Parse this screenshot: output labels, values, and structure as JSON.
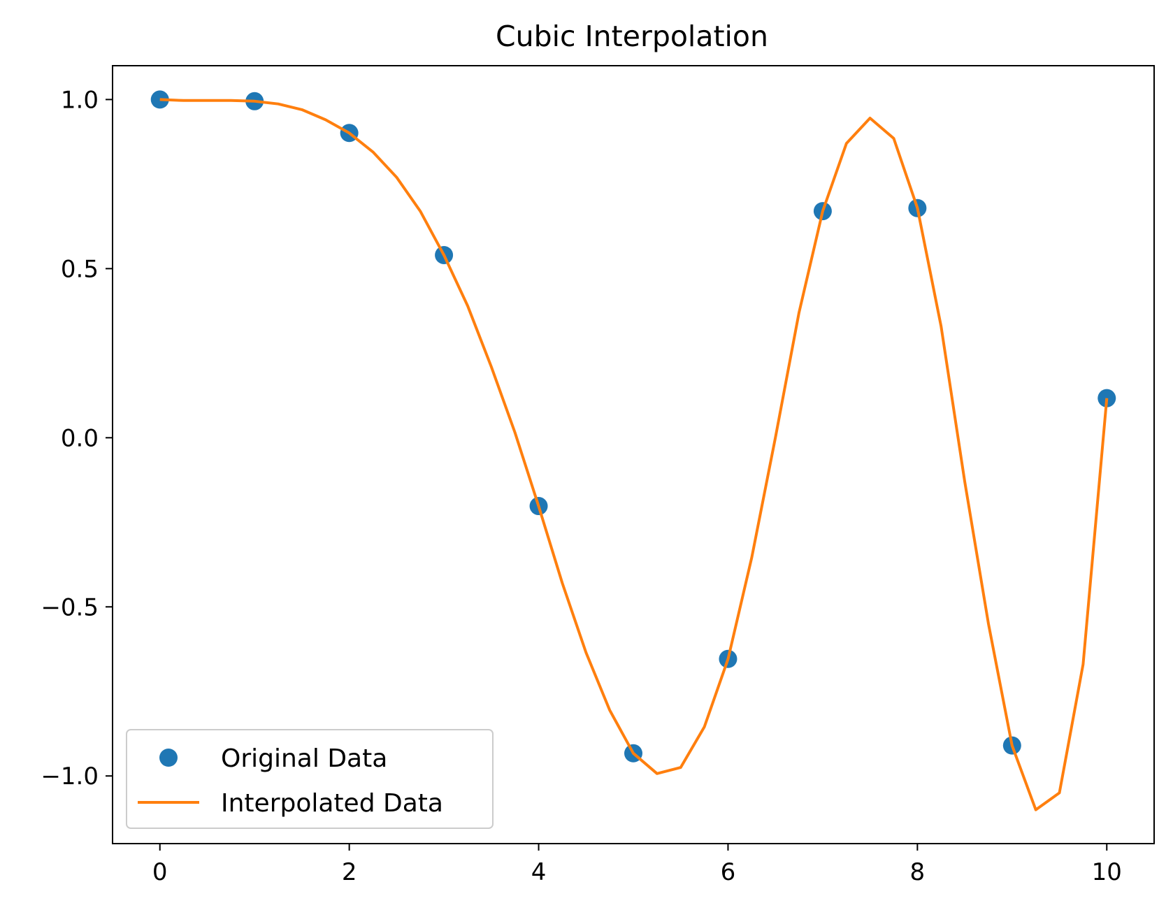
{
  "chart_data": {
    "type": "line",
    "title": "Cubic Interpolation",
    "xlabel": "",
    "ylabel": "",
    "xlim": [
      -0.5,
      10.5
    ],
    "ylim": [
      -1.2,
      1.1
    ],
    "x_ticks": [
      0,
      2,
      4,
      6,
      8,
      10
    ],
    "x_tick_labels": [
      "0",
      "2",
      "4",
      "6",
      "8",
      "10"
    ],
    "y_ticks": [
      1.0,
      0.5,
      0.0,
      -0.5,
      -1.0
    ],
    "y_tick_labels": [
      "1.0",
      "0.5",
      "0.0",
      "−0.5",
      "−1.0"
    ],
    "grid": false,
    "legend_position": "lower-left",
    "series": [
      {
        "name": "Original Data",
        "kind": "scatter",
        "color": "#1f77b4",
        "x": [
          0,
          1,
          2,
          3,
          4,
          5,
          6,
          7,
          8,
          9,
          10
        ],
        "y": [
          1.0,
          0.995,
          0.901,
          0.54,
          -0.202,
          -0.933,
          -0.654,
          0.67,
          0.679,
          -0.91,
          0.117
        ]
      },
      {
        "name": "Interpolated Data",
        "kind": "line",
        "color": "#ff7f0e",
        "x": [
          0,
          0.25,
          0.5,
          0.75,
          1,
          1.25,
          1.5,
          1.75,
          2,
          2.25,
          2.5,
          2.75,
          3,
          3.25,
          3.5,
          3.75,
          4,
          4.25,
          4.5,
          4.75,
          5,
          5.25,
          5.5,
          5.75,
          6,
          6.25,
          6.5,
          6.75,
          7,
          7.25,
          7.5,
          7.75,
          8,
          8.25,
          8.5,
          8.75,
          9,
          9.25,
          9.5,
          9.75,
          10
        ],
        "y": [
          1.0,
          0.997,
          0.997,
          0.997,
          0.995,
          0.987,
          0.97,
          0.94,
          0.901,
          0.845,
          0.77,
          0.67,
          0.54,
          0.39,
          0.21,
          0.015,
          -0.202,
          -0.43,
          -0.635,
          -0.805,
          -0.933,
          -0.993,
          -0.975,
          -0.855,
          -0.654,
          -0.355,
          0.0,
          0.37,
          0.67,
          0.87,
          0.945,
          0.885,
          0.679,
          0.33,
          -0.13,
          -0.55,
          -0.91,
          -1.1,
          -1.05,
          -0.67,
          0.117
        ]
      }
    ]
  }
}
